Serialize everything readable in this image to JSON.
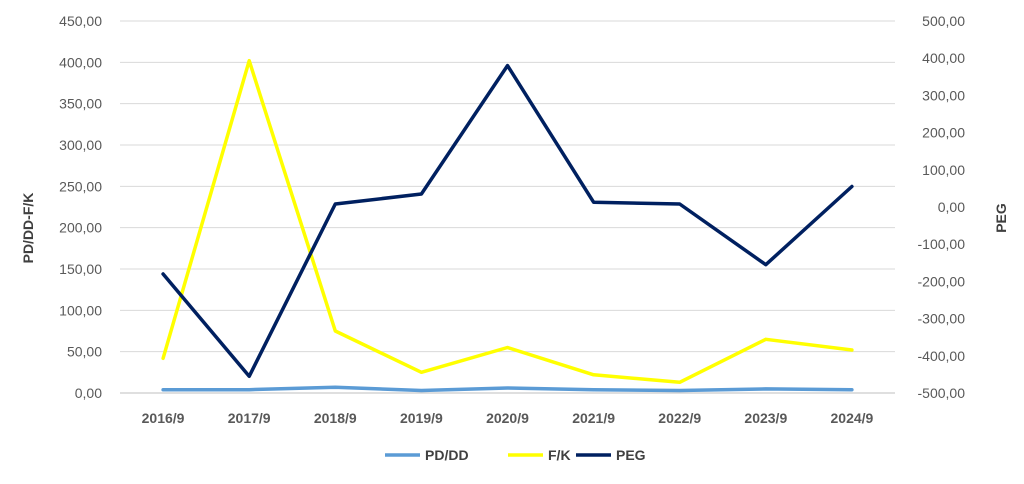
{
  "chart_data": {
    "type": "line",
    "categories": [
      "2016/9",
      "2017/9",
      "2018/9",
      "2019/9",
      "2020/9",
      "2021/9",
      "2022/9",
      "2023/9",
      "2024/9"
    ],
    "y_left": {
      "label": "PD/DD-F/K",
      "ylim": [
        0,
        450
      ],
      "ticks": [
        "0,00",
        "50,00",
        "100,00",
        "150,00",
        "200,00",
        "250,00",
        "300,00",
        "350,00",
        "400,00",
        "450,00"
      ]
    },
    "y_right": {
      "label": "PEG",
      "ylim": [
        -500,
        500
      ],
      "ticks": [
        "-500,00",
        "-400,00",
        "-300,00",
        "-200,00",
        "-100,00",
        "0,00",
        "100,00",
        "200,00",
        "300,00",
        "400,00",
        "500,00"
      ]
    },
    "series": [
      {
        "name": "PD/DD",
        "axis": "left",
        "color": "#5b9bd5",
        "values": [
          4,
          4,
          7,
          3,
          6,
          4,
          3,
          5,
          4
        ]
      },
      {
        "name": "F/K",
        "axis": "left",
        "color": "#ffff00",
        "values": [
          42,
          402,
          75,
          25,
          55,
          22,
          13,
          65,
          52
        ]
      },
      {
        "name": "PEG",
        "axis": "right",
        "color": "#002060",
        "values": [
          -180,
          -455,
          8,
          35,
          380,
          13,
          8,
          -155,
          55
        ]
      }
    ],
    "grid": true,
    "legend": "bottom"
  }
}
